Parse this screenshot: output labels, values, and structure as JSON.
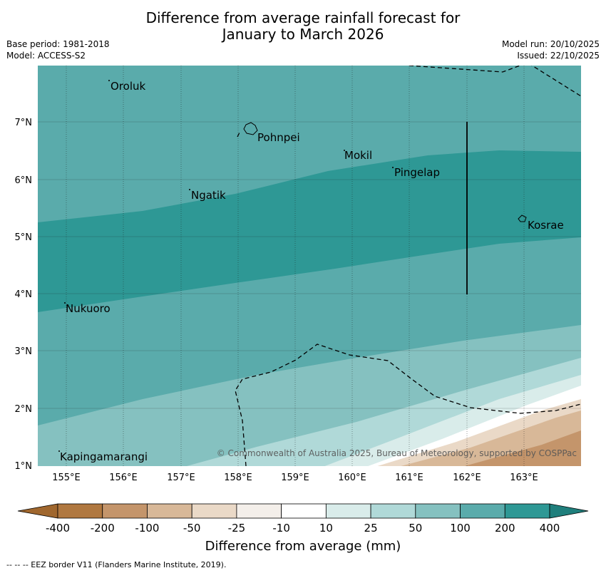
{
  "title": {
    "line1": "Difference from average rainfall forecast for",
    "line2": "January to March 2026"
  },
  "meta": {
    "base_period": "Base period: 1981-2018",
    "model": "Model: ACCESS-S2",
    "model_run": "Model run: 20/10/2025",
    "issued": "Issued: 22/10/2025"
  },
  "map": {
    "lat_labels": [
      "7°N",
      "6°N",
      "5°N",
      "4°N",
      "3°N",
      "2°N",
      "1°N"
    ],
    "lon_labels": [
      "155°E",
      "156°E",
      "157°E",
      "158°E",
      "159°E",
      "160°E",
      "161°E",
      "162°E",
      "163°E"
    ],
    "places": [
      "Oroluk",
      "Pohnpei",
      "Mokil",
      "Pingelap",
      "Ngatik",
      "Kosrae",
      "Nukuoro",
      "Kapingamarangi"
    ],
    "copyright": "© Commonwealth of Australia 2025, Bureau of Meteorology, supported by COSPPac"
  },
  "legend": {
    "title": "Difference from average (mm)",
    "ticks": [
      "-400",
      "-200",
      "-100",
      "-50",
      "-25",
      "-10",
      "10",
      "25",
      "50",
      "100",
      "200",
      "400"
    ],
    "colors": [
      "#a0672e",
      "#b07840",
      "#c4956b",
      "#d8b898",
      "#ead9c7",
      "#f4efea",
      "#ffffff",
      "#d9ecea",
      "#b0d9d8",
      "#85c1c0",
      "#5aabab",
      "#2e9895",
      "#1f7f7c"
    ]
  },
  "footnote": "--  --  -- EEZ border V11 (Flanders Marine Institute, 2019)."
}
